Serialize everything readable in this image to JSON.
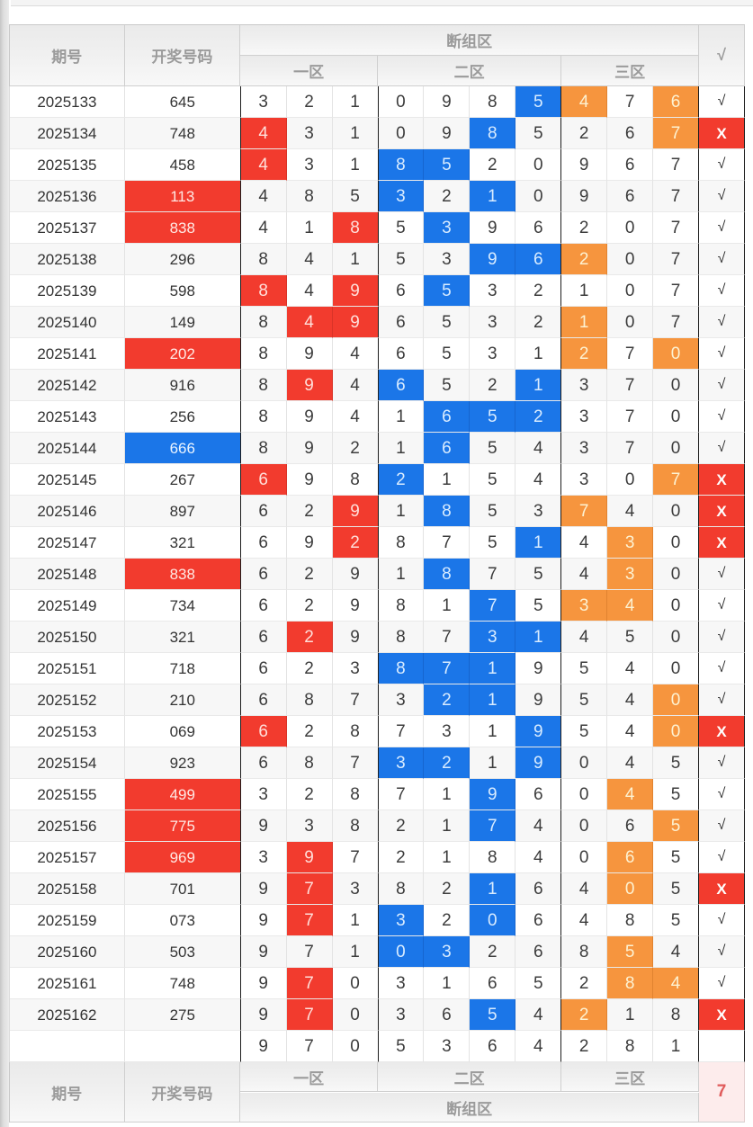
{
  "colors": {
    "highlight_blue": "#1b76e8",
    "highlight_orange": "#f6953e",
    "highlight_red": "#f23b2e",
    "miss_cell_bg": "#fdecec",
    "miss_count_text": "#e05b5b",
    "header_text": "#9b9b9b"
  },
  "legend": {
    "mark_codes": {
      "b": "blue highlight",
      "o": "orange highlight",
      "r": "red highlight"
    },
    "number_mark_codes": {
      "red": "red filled draw number",
      "blue": "blue filled draw number"
    },
    "result_values": {
      "√": "hit",
      "X": "miss"
    }
  },
  "header": {
    "period": "期号",
    "number": "开奖号码",
    "group": "断组区",
    "zones": [
      "一区",
      "二区",
      "三区"
    ],
    "check": "√"
  },
  "footer": {
    "period": "期号",
    "number": "开奖号码",
    "group": "断组区",
    "zones": [
      "一区",
      "二区",
      "三区"
    ],
    "miss_count": "7"
  },
  "rows": [
    {
      "period": "2025133",
      "number": "645",
      "number_mark": "",
      "values": [
        3,
        2,
        1,
        0,
        9,
        8,
        5,
        4,
        7,
        6
      ],
      "marks": [
        "",
        "",
        "",
        "",
        "",
        "",
        "b",
        "o",
        "",
        "o"
      ],
      "result": "√"
    },
    {
      "period": "2025134",
      "number": "748",
      "number_mark": "",
      "values": [
        4,
        3,
        1,
        0,
        9,
        8,
        5,
        2,
        6,
        7
      ],
      "marks": [
        "r",
        "",
        "",
        "",
        "",
        "b",
        "",
        "",
        "",
        "o"
      ],
      "result": "X"
    },
    {
      "period": "2025135",
      "number": "458",
      "number_mark": "",
      "values": [
        4,
        3,
        1,
        8,
        5,
        2,
        0,
        9,
        6,
        7
      ],
      "marks": [
        "r",
        "",
        "",
        "b",
        "b",
        "",
        "",
        "",
        "",
        ""
      ],
      "result": "√"
    },
    {
      "period": "2025136",
      "number": "113",
      "number_mark": "red",
      "values": [
        4,
        8,
        5,
        3,
        2,
        1,
        0,
        9,
        6,
        7
      ],
      "marks": [
        "",
        "",
        "",
        "b",
        "",
        "b",
        "",
        "",
        "",
        ""
      ],
      "result": "√"
    },
    {
      "period": "2025137",
      "number": "838",
      "number_mark": "red",
      "values": [
        4,
        1,
        8,
        5,
        3,
        9,
        6,
        2,
        0,
        7
      ],
      "marks": [
        "",
        "",
        "r",
        "",
        "b",
        "",
        "",
        "",
        "",
        ""
      ],
      "result": "√"
    },
    {
      "period": "2025138",
      "number": "296",
      "number_mark": "",
      "values": [
        8,
        4,
        1,
        5,
        3,
        9,
        6,
        2,
        0,
        7
      ],
      "marks": [
        "",
        "",
        "",
        "",
        "",
        "b",
        "b",
        "o",
        "",
        ""
      ],
      "result": "√"
    },
    {
      "period": "2025139",
      "number": "598",
      "number_mark": "",
      "values": [
        8,
        4,
        9,
        6,
        5,
        3,
        2,
        1,
        0,
        7
      ],
      "marks": [
        "r",
        "",
        "r",
        "",
        "b",
        "",
        "",
        "",
        "",
        ""
      ],
      "result": "√"
    },
    {
      "period": "2025140",
      "number": "149",
      "number_mark": "",
      "values": [
        8,
        4,
        9,
        6,
        5,
        3,
        2,
        1,
        0,
        7
      ],
      "marks": [
        "",
        "r",
        "r",
        "",
        "",
        "",
        "",
        "o",
        "",
        ""
      ],
      "result": "√"
    },
    {
      "period": "2025141",
      "number": "202",
      "number_mark": "red",
      "values": [
        8,
        9,
        4,
        6,
        5,
        3,
        1,
        2,
        7,
        0
      ],
      "marks": [
        "",
        "",
        "",
        "",
        "",
        "",
        "",
        "o",
        "",
        "o"
      ],
      "result": "√"
    },
    {
      "period": "2025142",
      "number": "916",
      "number_mark": "",
      "values": [
        8,
        9,
        4,
        6,
        5,
        2,
        1,
        3,
        7,
        0
      ],
      "marks": [
        "",
        "r",
        "",
        "b",
        "",
        "",
        "b",
        "",
        "",
        ""
      ],
      "result": "√"
    },
    {
      "period": "2025143",
      "number": "256",
      "number_mark": "",
      "values": [
        8,
        9,
        4,
        1,
        6,
        5,
        2,
        3,
        7,
        0
      ],
      "marks": [
        "",
        "",
        "",
        "",
        "b",
        "b",
        "b",
        "",
        "",
        ""
      ],
      "result": "√"
    },
    {
      "period": "2025144",
      "number": "666",
      "number_mark": "blue",
      "values": [
        8,
        9,
        2,
        1,
        6,
        5,
        4,
        3,
        7,
        0
      ],
      "marks": [
        "",
        "",
        "",
        "",
        "b",
        "",
        "",
        "",
        "",
        ""
      ],
      "result": "√"
    },
    {
      "period": "2025145",
      "number": "267",
      "number_mark": "",
      "values": [
        6,
        9,
        8,
        2,
        1,
        5,
        4,
        3,
        0,
        7
      ],
      "marks": [
        "r",
        "",
        "",
        "b",
        "",
        "",
        "",
        "",
        "",
        "o"
      ],
      "result": "X"
    },
    {
      "period": "2025146",
      "number": "897",
      "number_mark": "",
      "values": [
        6,
        2,
        9,
        1,
        8,
        5,
        3,
        7,
        4,
        0
      ],
      "marks": [
        "",
        "",
        "r",
        "",
        "b",
        "",
        "",
        "o",
        "",
        ""
      ],
      "result": "X"
    },
    {
      "period": "2025147",
      "number": "321",
      "number_mark": "",
      "values": [
        6,
        9,
        2,
        8,
        7,
        5,
        1,
        4,
        3,
        0
      ],
      "marks": [
        "",
        "",
        "r",
        "",
        "",
        "",
        "b",
        "",
        "o",
        ""
      ],
      "result": "X"
    },
    {
      "period": "2025148",
      "number": "838",
      "number_mark": "red",
      "values": [
        6,
        2,
        9,
        1,
        8,
        7,
        5,
        4,
        3,
        0
      ],
      "marks": [
        "",
        "",
        "",
        "",
        "b",
        "",
        "",
        "",
        "o",
        ""
      ],
      "result": "√"
    },
    {
      "period": "2025149",
      "number": "734",
      "number_mark": "",
      "values": [
        6,
        2,
        9,
        8,
        1,
        7,
        5,
        3,
        4,
        0
      ],
      "marks": [
        "",
        "",
        "",
        "",
        "",
        "b",
        "",
        "o",
        "o",
        ""
      ],
      "result": "√"
    },
    {
      "period": "2025150",
      "number": "321",
      "number_mark": "",
      "values": [
        6,
        2,
        9,
        8,
        7,
        3,
        1,
        4,
        5,
        0
      ],
      "marks": [
        "",
        "r",
        "",
        "",
        "",
        "b",
        "b",
        "",
        "",
        ""
      ],
      "result": "√"
    },
    {
      "period": "2025151",
      "number": "718",
      "number_mark": "",
      "values": [
        6,
        2,
        3,
        8,
        7,
        1,
        9,
        5,
        4,
        0
      ],
      "marks": [
        "",
        "",
        "",
        "b",
        "b",
        "b",
        "",
        "",
        "",
        ""
      ],
      "result": "√"
    },
    {
      "period": "2025152",
      "number": "210",
      "number_mark": "",
      "values": [
        6,
        8,
        7,
        3,
        2,
        1,
        9,
        5,
        4,
        0
      ],
      "marks": [
        "",
        "",
        "",
        "",
        "b",
        "b",
        "",
        "",
        "",
        "o"
      ],
      "result": "√"
    },
    {
      "period": "2025153",
      "number": "069",
      "number_mark": "",
      "values": [
        6,
        2,
        8,
        7,
        3,
        1,
        9,
        5,
        4,
        0
      ],
      "marks": [
        "r",
        "",
        "",
        "",
        "",
        "",
        "b",
        "",
        "",
        "o"
      ],
      "result": "X"
    },
    {
      "period": "2025154",
      "number": "923",
      "number_mark": "",
      "values": [
        6,
        8,
        7,
        3,
        2,
        1,
        9,
        0,
        4,
        5
      ],
      "marks": [
        "",
        "",
        "",
        "b",
        "b",
        "",
        "b",
        "",
        "",
        ""
      ],
      "result": "√"
    },
    {
      "period": "2025155",
      "number": "499",
      "number_mark": "red",
      "values": [
        3,
        2,
        8,
        7,
        1,
        9,
        6,
        0,
        4,
        5
      ],
      "marks": [
        "",
        "",
        "",
        "",
        "",
        "b",
        "",
        "",
        "o",
        ""
      ],
      "result": "√"
    },
    {
      "period": "2025156",
      "number": "775",
      "number_mark": "red",
      "values": [
        9,
        3,
        8,
        2,
        1,
        7,
        4,
        0,
        6,
        5
      ],
      "marks": [
        "",
        "",
        "",
        "",
        "",
        "b",
        "",
        "",
        "",
        "o"
      ],
      "result": "√"
    },
    {
      "period": "2025157",
      "number": "969",
      "number_mark": "red",
      "values": [
        3,
        9,
        7,
        2,
        1,
        8,
        4,
        0,
        6,
        5
      ],
      "marks": [
        "",
        "r",
        "",
        "",
        "",
        "",
        "",
        "",
        "o",
        ""
      ],
      "result": "√"
    },
    {
      "period": "2025158",
      "number": "701",
      "number_mark": "",
      "values": [
        9,
        7,
        3,
        8,
        2,
        1,
        6,
        4,
        0,
        5
      ],
      "marks": [
        "",
        "r",
        "",
        "",
        "",
        "b",
        "",
        "",
        "o",
        ""
      ],
      "result": "X"
    },
    {
      "period": "2025159",
      "number": "073",
      "number_mark": "",
      "values": [
        9,
        7,
        1,
        3,
        2,
        0,
        6,
        4,
        8,
        5
      ],
      "marks": [
        "",
        "r",
        "",
        "b",
        "",
        "b",
        "",
        "",
        "",
        ""
      ],
      "result": "√"
    },
    {
      "period": "2025160",
      "number": "503",
      "number_mark": "",
      "values": [
        9,
        7,
        1,
        0,
        3,
        2,
        6,
        8,
        5,
        4
      ],
      "marks": [
        "",
        "",
        "",
        "b",
        "b",
        "",
        "",
        "",
        "o",
        ""
      ],
      "result": "√"
    },
    {
      "period": "2025161",
      "number": "748",
      "number_mark": "",
      "values": [
        9,
        7,
        0,
        3,
        1,
        6,
        5,
        2,
        8,
        4
      ],
      "marks": [
        "",
        "r",
        "",
        "",
        "",
        "",
        "",
        "",
        "o",
        "o"
      ],
      "result": "√"
    },
    {
      "period": "2025162",
      "number": "275",
      "number_mark": "",
      "values": [
        9,
        7,
        0,
        3,
        6,
        5,
        4,
        2,
        1,
        8
      ],
      "marks": [
        "",
        "r",
        "",
        "",
        "",
        "b",
        "",
        "o",
        "",
        ""
      ],
      "result": "X"
    }
  ],
  "summary": {
    "period": "",
    "number": "",
    "values": [
      9,
      7,
      0,
      5,
      3,
      6,
      4,
      2,
      8,
      1
    ],
    "result": ""
  }
}
